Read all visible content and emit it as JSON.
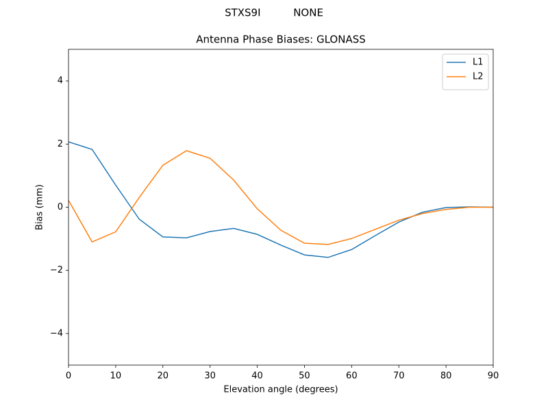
{
  "chart_data": {
    "type": "line",
    "suptitle": "STXS9I          NONE",
    "title": "Antenna Phase Biases: GLONASS",
    "xlabel": "Elevation angle (degrees)",
    "ylabel": "Bias (mm)",
    "x": [
      0,
      5,
      10,
      15,
      20,
      25,
      30,
      35,
      40,
      45,
      50,
      55,
      60,
      65,
      70,
      75,
      80,
      85,
      90
    ],
    "series": [
      {
        "name": "L1",
        "color": "#1f77b4",
        "values": [
          2.07,
          1.83,
          0.7,
          -0.38,
          -0.94,
          -0.97,
          -0.77,
          -0.67,
          -0.86,
          -1.2,
          -1.51,
          -1.59,
          -1.34,
          -0.9,
          -0.47,
          -0.16,
          -0.01,
          0.01,
          0
        ]
      },
      {
        "name": "L2",
        "color": "#ff7f0e",
        "values": [
          0.22,
          -1.1,
          -0.78,
          0.31,
          1.33,
          1.79,
          1.55,
          0.86,
          -0.05,
          -0.73,
          -1.14,
          -1.18,
          -0.99,
          -0.7,
          -0.41,
          -0.2,
          -0.07,
          0,
          0
        ]
      }
    ],
    "xlim": [
      0,
      90
    ],
    "xticks": [
      0,
      10,
      20,
      30,
      40,
      50,
      60,
      70,
      80,
      90
    ],
    "ylim": [
      -5,
      5
    ],
    "yticks": [
      {
        "value": -4,
        "label": "−4"
      },
      {
        "value": -2,
        "label": "−2"
      },
      0,
      2,
      4
    ],
    "grid": false,
    "legend": "upper right"
  }
}
